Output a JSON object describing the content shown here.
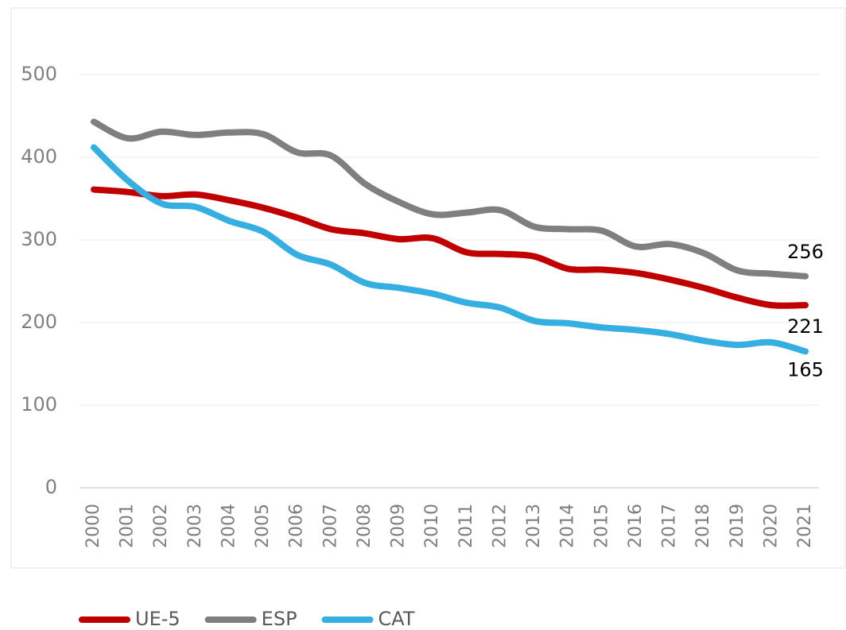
{
  "chart_data": {
    "type": "line",
    "categories": [
      "2000",
      "2001",
      "2002",
      "2003",
      "2004",
      "2005",
      "2006",
      "2007",
      "2008",
      "2009",
      "2010",
      "2011",
      "2012",
      "2013",
      "2014",
      "2015",
      "2016",
      "2017",
      "2018",
      "2019",
      "2020",
      "2021"
    ],
    "series": [
      {
        "name": "UE-5",
        "color": "#c00000",
        "values": [
          361,
          358,
          353,
          355,
          348,
          339,
          327,
          313,
          308,
          301,
          302,
          285,
          283,
          280,
          265,
          264,
          260,
          252,
          242,
          230,
          221,
          221
        ]
      },
      {
        "name": "ESP",
        "color": "#7f7f7f",
        "values": [
          443,
          423,
          431,
          427,
          430,
          428,
          406,
          402,
          368,
          346,
          331,
          333,
          336,
          316,
          313,
          311,
          292,
          295,
          284,
          263,
          259,
          256
        ]
      },
      {
        "name": "CAT",
        "color": "#35aee2",
        "values": [
          412,
          372,
          344,
          340,
          323,
          310,
          282,
          270,
          248,
          242,
          235,
          224,
          218,
          202,
          199,
          194,
          191,
          186,
          178,
          173,
          176,
          165
        ]
      }
    ],
    "ylim": [
      0,
      500
    ],
    "yticks": [
      0,
      100,
      200,
      300,
      400,
      500
    ],
    "grid": true,
    "legend": "bottom"
  }
}
